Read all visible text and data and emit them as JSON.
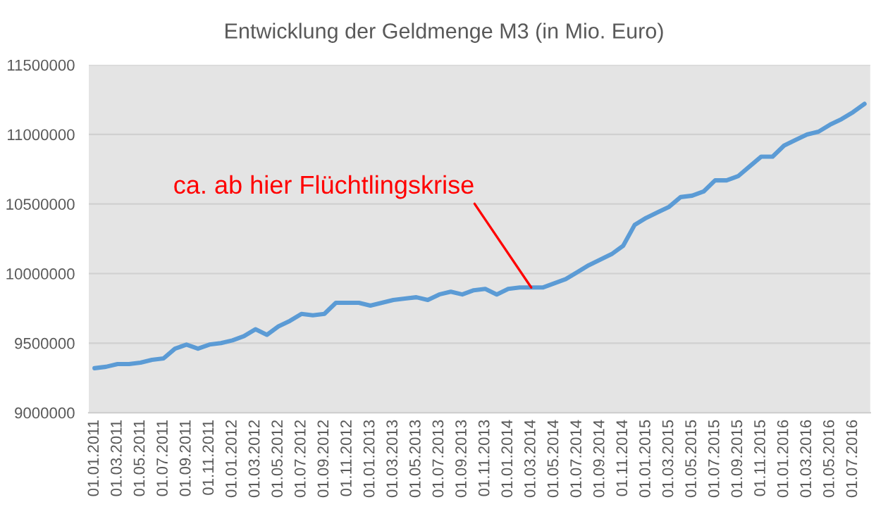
{
  "chart_data": {
    "type": "line",
    "title": "Entwicklung der Geldmenge M3 (in Mio. Euro)",
    "categories": [
      "01.01.2011",
      null,
      "01.03.2011",
      null,
      "01.05.2011",
      null,
      "01.07.2011",
      null,
      "01.09.2011",
      null,
      "01.11.2011",
      null,
      "01.01.2012",
      null,
      "01.03.2012",
      null,
      "01.05.2012",
      null,
      "01.07.2012",
      null,
      "01.09.2012",
      null,
      "01.11.2012",
      null,
      "01.01.2013",
      null,
      "01.03.2013",
      null,
      "01.05.2013",
      null,
      "01.07.2013",
      null,
      "01.09.2013",
      null,
      "01.11.2013",
      null,
      "01.01.2014",
      null,
      "01.03.2014",
      null,
      "01.05.2014",
      null,
      "01.07.2014",
      null,
      "01.09.2014",
      null,
      "01.11.2014",
      null,
      "01.01.2015",
      null,
      "01.03.2015",
      null,
      "01.05.2015",
      null,
      "01.07.2015",
      null,
      "01.09.2015",
      null,
      "01.11.2015",
      null,
      "01.01.2016",
      null,
      "01.03.2016",
      null,
      "01.05.2016",
      null,
      "01.07.2016",
      null
    ],
    "series": [
      {
        "color": "#5b9bd5",
        "values": [
          9320000,
          9330000,
          9350000,
          9350000,
          9360000,
          9380000,
          9390000,
          9460000,
          9490000,
          9460000,
          9490000,
          9500000,
          9520000,
          9550000,
          9600000,
          9560000,
          9620000,
          9660000,
          9710000,
          9700000,
          9710000,
          9790000,
          9790000,
          9790000,
          9770000,
          9790000,
          9810000,
          9820000,
          9830000,
          9810000,
          9850000,
          9870000,
          9850000,
          9880000,
          9890000,
          9850000,
          9890000,
          9900000,
          9900000,
          9900000,
          9930000,
          9960000,
          10010000,
          10060000,
          10100000,
          10140000,
          10200000,
          10350000,
          10400000,
          10440000,
          10480000,
          10550000,
          10560000,
          10590000,
          10670000,
          10670000,
          10700000,
          10770000,
          10840000,
          10840000,
          10920000,
          10960000,
          11000000,
          11020000,
          11070000,
          11110000,
          11160000,
          11220000
        ]
      }
    ],
    "ylim": [
      9000000,
      11500000
    ],
    "yticks": [
      9000000,
      9500000,
      10000000,
      10500000,
      11000000,
      11500000
    ],
    "grid": "y",
    "legend": false,
    "marker": "none",
    "line_style": "solid",
    "annotations": [
      {
        "text": "ca. ab hier Flüchtlingskrise",
        "x": "01.03.2014",
        "y": 9900000
      }
    ]
  }
}
